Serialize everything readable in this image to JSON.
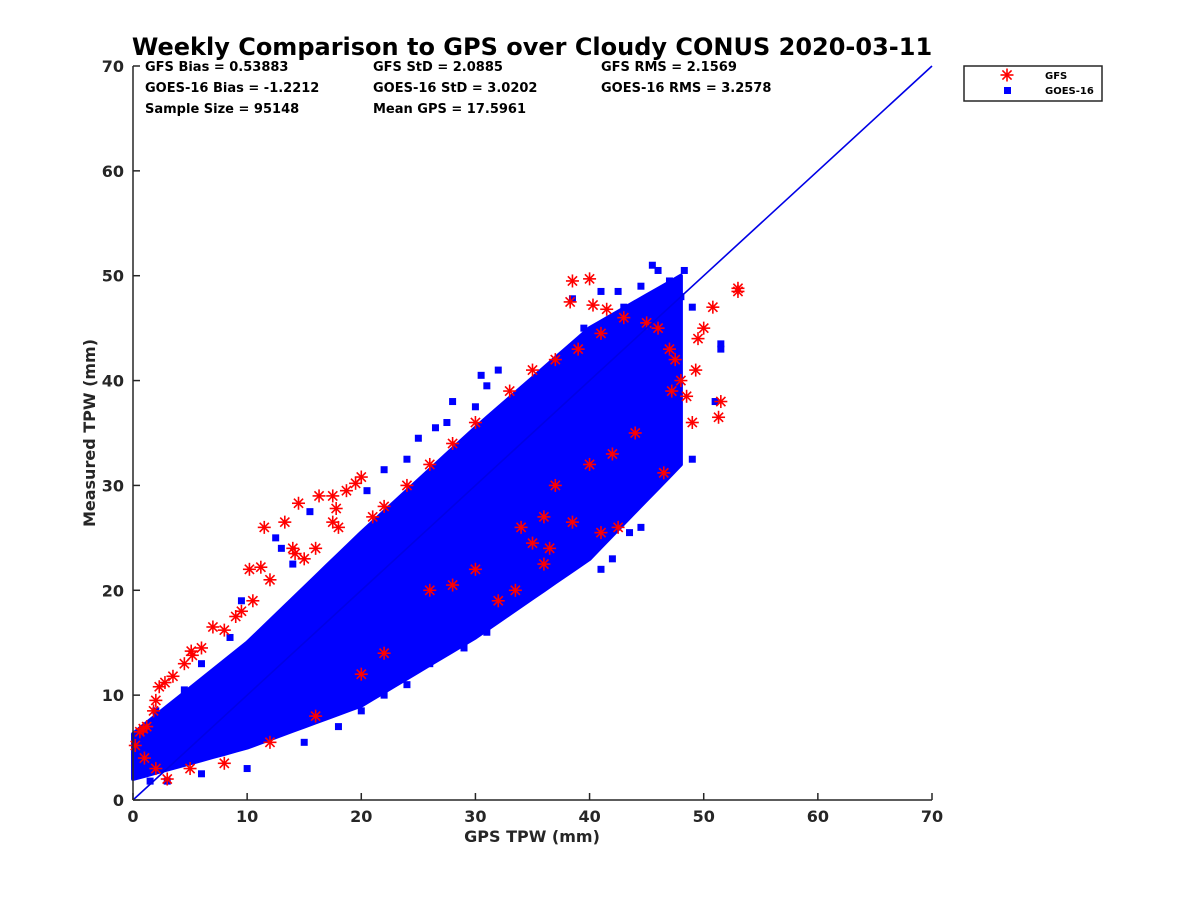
{
  "chart_data": {
    "type": "scatter",
    "title": "Weekly Comparison to GPS over Cloudy CONUS 2020-03-11",
    "xlabel": "GPS TPW (mm)",
    "ylabel": "Measured TPW (mm)",
    "xlim": [
      0,
      70
    ],
    "ylim": [
      0,
      70
    ],
    "xticks": [
      "0",
      "10",
      "20",
      "30",
      "40",
      "50",
      "60",
      "70"
    ],
    "yticks": [
      "0",
      "10",
      "20",
      "30",
      "40",
      "50",
      "60",
      "70"
    ],
    "grid": false,
    "legend_position": "top-right outside",
    "reference_line": {
      "x": [
        0,
        70
      ],
      "y": [
        0,
        70
      ],
      "color": "#0000e6"
    },
    "stats": [
      [
        "GFS Bias = 0.53883",
        "GFS StD = 2.0885",
        "GFS RMS = 2.1569"
      ],
      [
        "GOES-16 Bias = -1.2212",
        "GOES-16 StD = 3.0202",
        "GOES-16 RMS = 3.2578"
      ],
      [
        "Sample Size = 95148",
        "Mean GPS = 17.5961"
      ]
    ],
    "series": [
      {
        "name": "GFS",
        "marker": "asterisk",
        "color": "#ff0000",
        "points": [
          [
            0.2,
            5.2
          ],
          [
            0.6,
            6.5
          ],
          [
            0.9,
            6.8
          ],
          [
            1.2,
            7.0
          ],
          [
            1.8,
            8.5
          ],
          [
            2.0,
            9.5
          ],
          [
            2.3,
            10.8
          ],
          [
            2.8,
            11.2
          ],
          [
            3.5,
            11.8
          ],
          [
            4.5,
            13.0
          ],
          [
            5.2,
            13.8
          ],
          [
            5.1,
            14.2
          ],
          [
            6.0,
            14.5
          ],
          [
            7.0,
            16.5
          ],
          [
            8.0,
            16.2
          ],
          [
            9.0,
            17.5
          ],
          [
            9.5,
            18.0
          ],
          [
            10.5,
            19.0
          ],
          [
            10.2,
            22.0
          ],
          [
            11.2,
            22.2
          ],
          [
            11.5,
            26.0
          ],
          [
            12.0,
            21.0
          ],
          [
            13.3,
            26.5
          ],
          [
            14.0,
            24.0
          ],
          [
            14.2,
            23.5
          ],
          [
            14.5,
            28.3
          ],
          [
            16.3,
            29.0
          ],
          [
            17.5,
            29.0
          ],
          [
            17.8,
            27.8
          ],
          [
            18.7,
            29.5
          ],
          [
            19.5,
            30.2
          ],
          [
            20.0,
            30.8
          ],
          [
            32.0,
            19.0
          ],
          [
            33.5,
            20.0
          ],
          [
            35.0,
            24.5
          ],
          [
            36.0,
            22.5
          ],
          [
            36.5,
            24.0
          ],
          [
            38.5,
            26.5
          ],
          [
            41.0,
            25.5
          ],
          [
            42.5,
            26.0
          ],
          [
            46.5,
            31.2
          ],
          [
            48.5,
            38.5
          ],
          [
            49.0,
            36.0
          ],
          [
            49.3,
            41.0
          ],
          [
            49.5,
            44.0
          ],
          [
            50.0,
            45.0
          ],
          [
            50.8,
            47.0
          ],
          [
            51.3,
            36.5
          ],
          [
            51.5,
            38.0
          ],
          [
            53.0,
            48.8
          ],
          [
            53.0,
            48.5
          ],
          [
            38.5,
            49.5
          ],
          [
            40.0,
            49.7
          ],
          [
            38.3,
            47.5
          ],
          [
            40.3,
            47.2
          ],
          [
            41.5,
            46.8
          ],
          [
            43.0,
            46.0
          ],
          [
            45.0,
            45.5
          ],
          [
            46.0,
            45.0
          ],
          [
            47.0,
            43.0
          ],
          [
            47.5,
            42.0
          ],
          [
            47.2,
            39.0
          ],
          [
            48.0,
            40.0
          ],
          [
            44.0,
            35.0
          ],
          [
            42.0,
            33.0
          ],
          [
            40.0,
            32.0
          ],
          [
            37.0,
            30.0
          ],
          [
            36.0,
            27.0
          ],
          [
            34.0,
            26.0
          ],
          [
            30.0,
            22.0
          ],
          [
            28.0,
            20.5
          ],
          [
            26.0,
            20.0
          ],
          [
            22.0,
            14.0
          ],
          [
            20.0,
            12.0
          ],
          [
            16.0,
            8.0
          ],
          [
            12.0,
            5.5
          ],
          [
            8.0,
            3.5
          ],
          [
            5.0,
            3.0
          ],
          [
            3.0,
            2.0
          ],
          [
            2.0,
            3.0
          ],
          [
            1.0,
            4.0
          ],
          [
            15.0,
            23.0
          ],
          [
            16.0,
            24.0
          ],
          [
            17.5,
            26.5
          ],
          [
            18.0,
            26.0
          ],
          [
            21.0,
            27.0
          ],
          [
            22.0,
            28.0
          ],
          [
            24.0,
            30.0
          ],
          [
            26.0,
            32.0
          ],
          [
            28.0,
            34.0
          ],
          [
            30.0,
            36.0
          ],
          [
            33.0,
            39.0
          ],
          [
            35.0,
            41.0
          ],
          [
            37.0,
            42.0
          ],
          [
            39.0,
            43.0
          ],
          [
            41.0,
            44.5
          ]
        ]
      },
      {
        "name": "GOES-16",
        "marker": "square",
        "color": "#0000ff",
        "band": {
          "center": [
            [
              0,
              3.8
            ],
            [
              10,
              9.5
            ],
            [
              20,
              16.5
            ],
            [
              30,
              25.0
            ],
            [
              40,
              34.0
            ],
            [
              48,
              41.0
            ]
          ],
          "spread_low": [
            [
              0,
              1.8
            ],
            [
              10,
              4.5
            ],
            [
              20,
              7.5
            ],
            [
              30,
              9.5
            ],
            [
              40,
              11.0
            ],
            [
              48,
              9.0
            ]
          ],
          "spread_high": [
            [
              0,
              2.5
            ],
            [
              10,
              5.5
            ],
            [
              20,
              9.0
            ],
            [
              30,
              10.5
            ],
            [
              40,
              11.0
            ],
            [
              48,
              9.0
            ]
          ]
        },
        "points": [
          [
            45.5,
            51.0
          ],
          [
            46.0,
            50.5
          ],
          [
            48.3,
            50.5
          ],
          [
            47.0,
            49.5
          ],
          [
            44.5,
            49.0
          ],
          [
            42.5,
            48.5
          ],
          [
            41.0,
            48.5
          ],
          [
            38.5,
            47.8
          ],
          [
            39.5,
            45.0
          ],
          [
            51.5,
            43.5
          ],
          [
            51.5,
            43.0
          ],
          [
            51.0,
            38.0
          ],
          [
            49.0,
            32.5
          ],
          [
            47.5,
            36.5
          ],
          [
            46.5,
            33.0
          ],
          [
            45.5,
            34.5
          ],
          [
            45.0,
            30.0
          ],
          [
            44.5,
            26.0
          ],
          [
            43.5,
            25.5
          ],
          [
            42.0,
            23.0
          ],
          [
            41.0,
            22.0
          ],
          [
            40.0,
            24.5
          ],
          [
            39.0,
            25.0
          ],
          [
            37.0,
            22.5
          ],
          [
            36.0,
            23.0
          ],
          [
            34.0,
            20.0
          ],
          [
            33.5,
            20.5
          ],
          [
            32.5,
            19.5
          ],
          [
            31.0,
            16.0
          ],
          [
            29.5,
            15.5
          ],
          [
            29.0,
            14.5
          ],
          [
            26.0,
            13.0
          ],
          [
            24.0,
            11.0
          ],
          [
            25.0,
            34.5
          ],
          [
            27.5,
            36.0
          ],
          [
            28.0,
            38.0
          ],
          [
            30.0,
            37.5
          ],
          [
            31.0,
            39.5
          ],
          [
            30.5,
            40.5
          ],
          [
            32.0,
            41.0
          ],
          [
            26.5,
            35.5
          ],
          [
            24.0,
            32.5
          ],
          [
            22.0,
            31.5
          ],
          [
            20.5,
            29.5
          ],
          [
            15.5,
            27.5
          ],
          [
            12.5,
            25.0
          ],
          [
            13.0,
            24.0
          ],
          [
            14.0,
            22.5
          ],
          [
            9.5,
            19.0
          ],
          [
            8.5,
            15.5
          ],
          [
            6.0,
            13.0
          ],
          [
            4.5,
            10.5
          ],
          [
            2.0,
            8.5
          ],
          [
            1.0,
            6.0
          ],
          [
            0.5,
            5.5
          ],
          [
            0.3,
            2.5
          ],
          [
            1.5,
            1.8
          ],
          [
            3.0,
            1.8
          ],
          [
            6.0,
            2.5
          ],
          [
            10.0,
            3.0
          ],
          [
            15.0,
            5.5
          ],
          [
            18.0,
            7.0
          ],
          [
            20.0,
            8.5
          ],
          [
            22.0,
            10.0
          ],
          [
            47.0,
            44.0
          ],
          [
            49.0,
            47.0
          ],
          [
            48.0,
            48.0
          ],
          [
            46.5,
            47.5
          ],
          [
            43.0,
            47.0
          ],
          [
            44.0,
            41.0
          ],
          [
            42.5,
            39.0
          ],
          [
            41.5,
            37.0
          ],
          [
            39.0,
            34.0
          ],
          [
            36.0,
            30.0
          ],
          [
            33.0,
            28.0
          ]
        ]
      }
    ]
  }
}
